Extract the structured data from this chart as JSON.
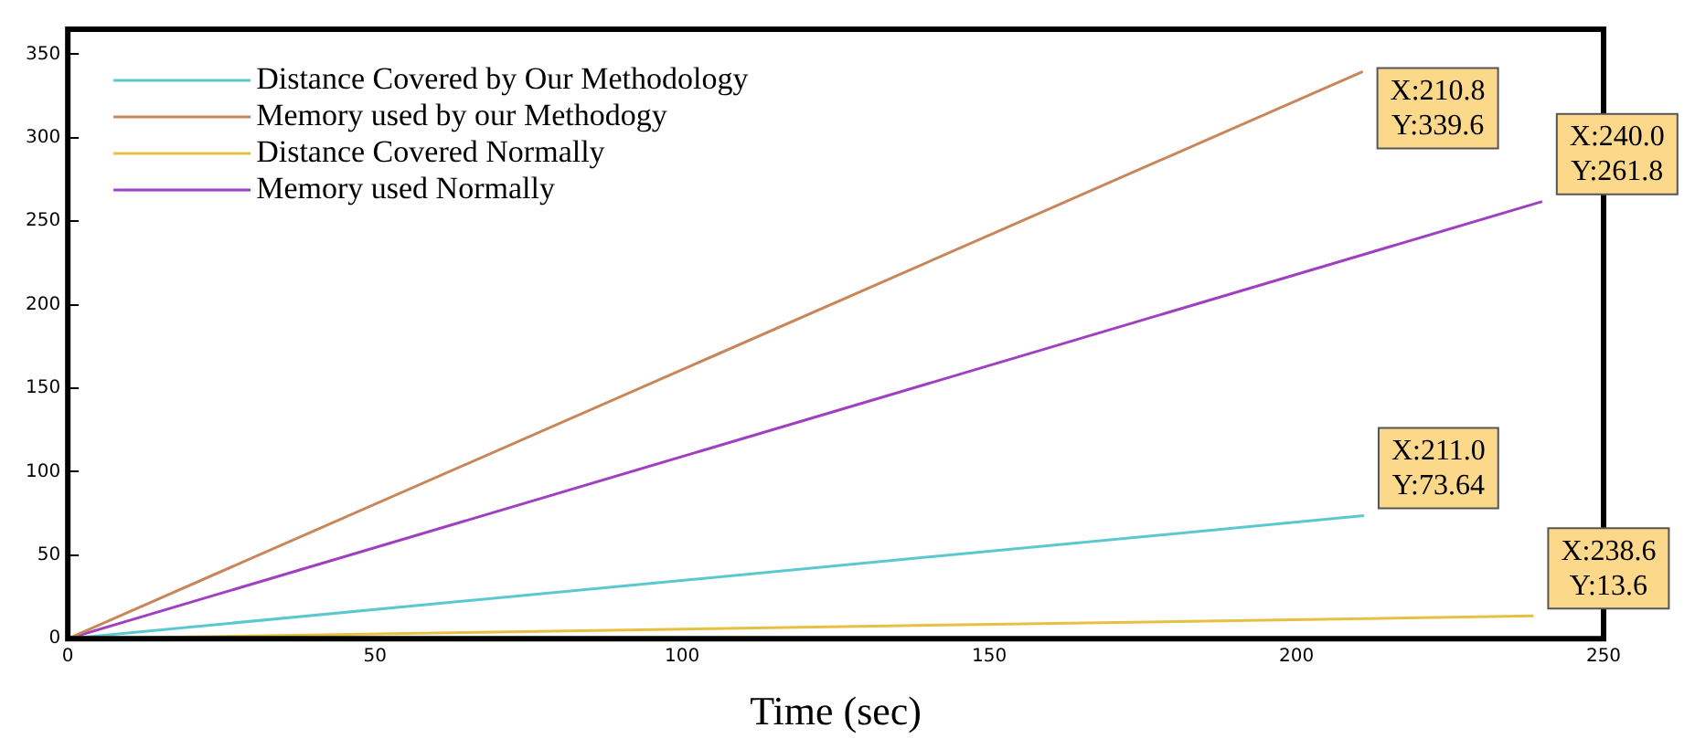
{
  "chart_data": {
    "type": "line",
    "xlabel": "Time (sec)",
    "xlim": [
      0,
      250
    ],
    "xticks": [
      0,
      50,
      100,
      150,
      200,
      250
    ],
    "ylim": [
      0,
      365
    ],
    "yticks": [
      0,
      50,
      100,
      150,
      200,
      250,
      300,
      350
    ],
    "grid": false,
    "legend": "top left",
    "marker": "none",
    "line_style": "solid",
    "series": [
      {
        "name": "Distance Covered by Our Methodology",
        "color": "#5bc8d0",
        "x": [
          0,
          211.0
        ],
        "values": [
          0,
          73.64
        ]
      },
      {
        "name": "Memory used by our Methodogy",
        "color": "#c8875a",
        "x": [
          0,
          210.8
        ],
        "values": [
          0,
          339.6
        ]
      },
      {
        "name": "Distance Covered Normally",
        "color": "#e8c040",
        "x": [
          0,
          238.6
        ],
        "values": [
          0,
          13.6
        ]
      },
      {
        "name": "Memory used Normally",
        "color": "#a040c0",
        "x": [
          0,
          240.0
        ],
        "values": [
          0,
          261.8
        ]
      }
    ],
    "annotations": [
      {
        "text": "X:210.8\nY:339.6",
        "x": 210.8,
        "y": 339.6
      },
      {
        "text": "X:240.0\nY:261.8",
        "x": 240.0,
        "y": 261.8
      },
      {
        "text": "X:211.0\nY:73.64",
        "x": 211.0,
        "y": 73.64
      },
      {
        "text": "X:238.6\nY:13.6",
        "x": 238.6,
        "y": 13.6
      }
    ]
  }
}
